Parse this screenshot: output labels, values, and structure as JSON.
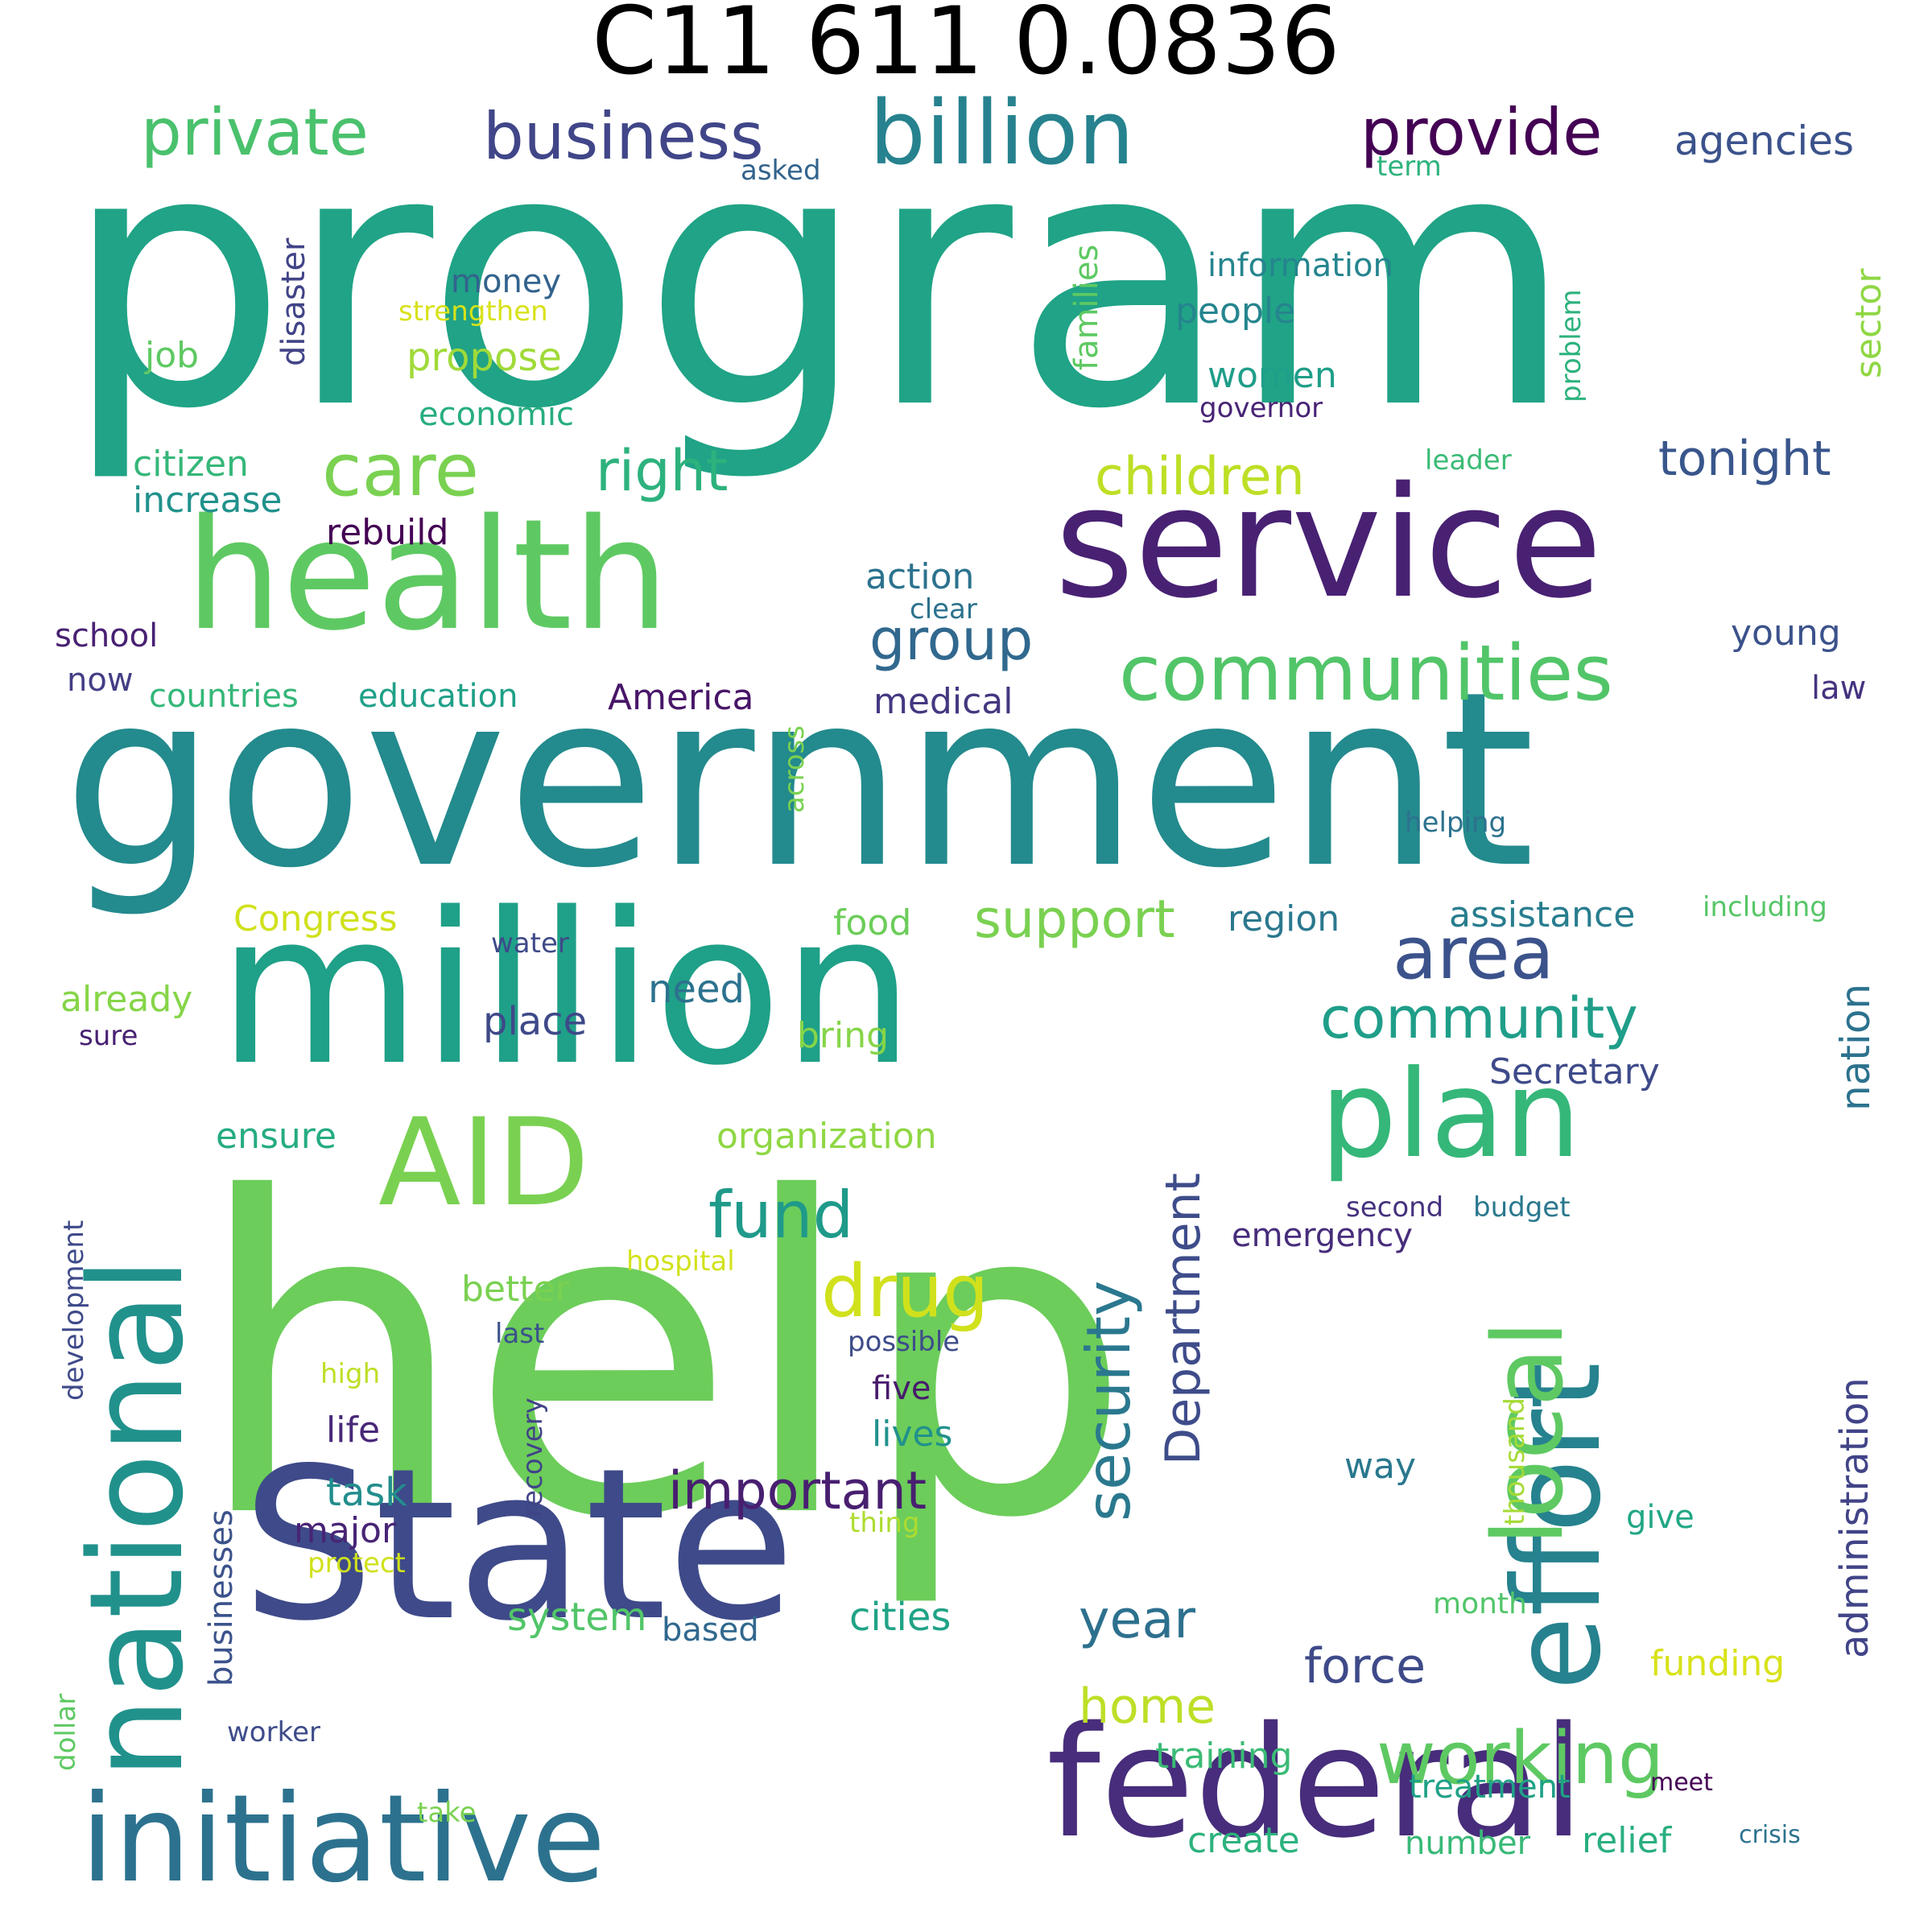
{
  "title": "C11 611 0.0836",
  "words": [
    {
      "id": "program",
      "text": "program",
      "color": "#20a386"
    },
    {
      "id": "help",
      "text": "help",
      "color": "#6ccd5a"
    },
    {
      "id": "government",
      "text": "government",
      "color": "#238a8d"
    },
    {
      "id": "million",
      "text": "million",
      "color": "#1fa088"
    },
    {
      "id": "state",
      "text": "State",
      "color": "#3e4a89"
    },
    {
      "id": "health",
      "text": "health",
      "color": "#5ec962"
    },
    {
      "id": "service",
      "text": "service",
      "color": "#482173"
    },
    {
      "id": "federal",
      "text": "federal",
      "color": "#472d7b"
    },
    {
      "id": "initiative",
      "text": "initiative",
      "color": "#2c728e"
    },
    {
      "id": "national",
      "text": "national",
      "color": "#21918c"
    },
    {
      "id": "effort",
      "text": "effort",
      "color": "#26828e"
    },
    {
      "id": "local",
      "text": "local",
      "color": "#5ec962"
    },
    {
      "id": "plan",
      "text": "plan",
      "color": "#35b779"
    },
    {
      "id": "aid",
      "text": "AID",
      "color": "#7ad151"
    },
    {
      "id": "billion",
      "text": "billion",
      "color": "#26828e"
    },
    {
      "id": "business",
      "text": "business",
      "color": "#404688"
    },
    {
      "id": "private",
      "text": "private",
      "color": "#4ac16d"
    },
    {
      "id": "provide",
      "text": "provide",
      "color": "#440154"
    },
    {
      "id": "agencies",
      "text": "agencies",
      "color": "#3b528b"
    },
    {
      "id": "asked",
      "text": "asked",
      "color": "#33638d"
    },
    {
      "id": "term",
      "text": "term",
      "color": "#2eb37c"
    },
    {
      "id": "care",
      "text": "care",
      "color": "#7ad151"
    },
    {
      "id": "right",
      "text": "right",
      "color": "#2db27d"
    },
    {
      "id": "children",
      "text": "children",
      "color": "#bddf26"
    },
    {
      "id": "tonight",
      "text": "tonight",
      "color": "#39568c"
    },
    {
      "id": "communities",
      "text": "communities",
      "color": "#52c569"
    },
    {
      "id": "group",
      "text": "group",
      "color": "#31688e"
    },
    {
      "id": "area",
      "text": "area",
      "color": "#3b528b"
    },
    {
      "id": "community",
      "text": "community",
      "color": "#1f9e89"
    },
    {
      "id": "support",
      "text": "support",
      "color": "#7ad151"
    },
    {
      "id": "fund",
      "text": "fund",
      "color": "#1f9a8a"
    },
    {
      "id": "drug",
      "text": "drug",
      "color": "#d0e11c"
    },
    {
      "id": "security",
      "text": "security",
      "color": "#2a788e"
    },
    {
      "id": "department",
      "text": "Department",
      "color": "#3e4c8a"
    },
    {
      "id": "year",
      "text": "year",
      "color": "#2d708e"
    },
    {
      "id": "force",
      "text": "force",
      "color": "#3e4a89"
    },
    {
      "id": "home",
      "text": "home",
      "color": "#bddf26"
    },
    {
      "id": "working",
      "text": "working",
      "color": "#5ec962"
    },
    {
      "id": "important",
      "text": "important",
      "color": "#481f70"
    },
    {
      "id": "administration",
      "text": "administration",
      "color": "#414487"
    },
    {
      "id": "nation",
      "text": "nation",
      "color": "#2c728e"
    },
    {
      "id": "money",
      "text": "money",
      "color": "#33638d"
    },
    {
      "id": "strengthen",
      "text": "strengthen",
      "color": "#d8e219"
    },
    {
      "id": "propose",
      "text": "propose",
      "color": "#a0da39"
    },
    {
      "id": "economic",
      "text": "economic",
      "color": "#27ad81"
    },
    {
      "id": "job",
      "text": "job",
      "color": "#5ec962"
    },
    {
      "id": "disaster",
      "text": "disaster",
      "color": "#414487"
    },
    {
      "id": "citizen",
      "text": "citizen",
      "color": "#35b779"
    },
    {
      "id": "increase",
      "text": "increase",
      "color": "#21918c"
    },
    {
      "id": "rebuild",
      "text": "rebuild",
      "color": "#440154"
    },
    {
      "id": "families",
      "text": "families",
      "color": "#5ec962"
    },
    {
      "id": "information",
      "text": "information",
      "color": "#25858e"
    },
    {
      "id": "people",
      "text": "people",
      "color": "#25858e"
    },
    {
      "id": "women",
      "text": "women",
      "color": "#1f9e89"
    },
    {
      "id": "governor",
      "text": "governor",
      "color": "#482475"
    },
    {
      "id": "problem",
      "text": "problem",
      "color": "#2db27d"
    },
    {
      "id": "sector",
      "text": "sector",
      "color": "#8fd744"
    },
    {
      "id": "leader",
      "text": "leader",
      "color": "#3bbb75"
    },
    {
      "id": "action",
      "text": "action",
      "color": "#2c728e"
    },
    {
      "id": "clear",
      "text": "clear",
      "color": "#2c728e"
    },
    {
      "id": "school",
      "text": "school",
      "color": "#482173"
    },
    {
      "id": "now",
      "text": "now",
      "color": "#433e85"
    },
    {
      "id": "countries",
      "text": "countries",
      "color": "#35b779"
    },
    {
      "id": "education",
      "text": "education",
      "color": "#1fa088"
    },
    {
      "id": "america",
      "text": "America",
      "color": "#481668"
    },
    {
      "id": "medical",
      "text": "medical",
      "color": "#453781"
    },
    {
      "id": "across",
      "text": "across",
      "color": "#7ad151"
    },
    {
      "id": "young",
      "text": "young",
      "color": "#3b528b"
    },
    {
      "id": "law",
      "text": "law",
      "color": "#46337f"
    },
    {
      "id": "helping",
      "text": "helping",
      "color": "#2c728e"
    },
    {
      "id": "congress",
      "text": "Congress",
      "color": "#d0e11c"
    },
    {
      "id": "food",
      "text": "food",
      "color": "#6ccd5a"
    },
    {
      "id": "region",
      "text": "region",
      "color": "#2a788e"
    },
    {
      "id": "assistance",
      "text": "assistance",
      "color": "#287d8e"
    },
    {
      "id": "including",
      "text": "including",
      "color": "#56c667"
    },
    {
      "id": "water",
      "text": "water",
      "color": "#3e4a89"
    },
    {
      "id": "already",
      "text": "already",
      "color": "#86d549"
    },
    {
      "id": "sure",
      "text": "sure",
      "color": "#482173"
    },
    {
      "id": "place",
      "text": "place",
      "color": "#3e4989"
    },
    {
      "id": "need",
      "text": "need",
      "color": "#2c728e"
    },
    {
      "id": "bring",
      "text": "bring",
      "color": "#86d549"
    },
    {
      "id": "secretary",
      "text": "Secretary",
      "color": "#3e4a89"
    },
    {
      "id": "ensure",
      "text": "ensure",
      "color": "#25ab82"
    },
    {
      "id": "organization",
      "text": "organization",
      "color": "#8fd744"
    },
    {
      "id": "second",
      "text": "second",
      "color": "#46327e"
    },
    {
      "id": "budget",
      "text": "budget",
      "color": "#2a788e"
    },
    {
      "id": "emergency",
      "text": "emergency",
      "color": "#472d7b"
    },
    {
      "id": "hospital",
      "text": "hospital",
      "color": "#d2e21b"
    },
    {
      "id": "better",
      "text": "better",
      "color": "#7ad151"
    },
    {
      "id": "development",
      "text": "development",
      "color": "#3e4a89"
    },
    {
      "id": "last",
      "text": "last",
      "color": "#3b528b"
    },
    {
      "id": "possible",
      "text": "possible",
      "color": "#3e4c8a"
    },
    {
      "id": "high",
      "text": "high",
      "color": "#bddf26"
    },
    {
      "id": "five",
      "text": "five",
      "color": "#481a6c"
    },
    {
      "id": "lives",
      "text": "lives",
      "color": "#21918c"
    },
    {
      "id": "life",
      "text": "life",
      "color": "#482878"
    },
    {
      "id": "recovery",
      "text": "recovery",
      "color": "#414487"
    },
    {
      "id": "thousand",
      "text": "thousand",
      "color": "#a5db36"
    },
    {
      "id": "way",
      "text": "way",
      "color": "#2a788e"
    },
    {
      "id": "task",
      "text": "task",
      "color": "#228d8d"
    },
    {
      "id": "major",
      "text": "major",
      "color": "#482475"
    },
    {
      "id": "businesses",
      "text": "businesses",
      "color": "#3b528b"
    },
    {
      "id": "thing",
      "text": "thing",
      "color": "#addc30"
    },
    {
      "id": "give",
      "text": "give",
      "color": "#22a785"
    },
    {
      "id": "protect",
      "text": "protect",
      "color": "#d0e11c"
    },
    {
      "id": "system",
      "text": "system",
      "color": "#52c569"
    },
    {
      "id": "based",
      "text": "based",
      "color": "#31688e"
    },
    {
      "id": "cities",
      "text": "cities",
      "color": "#20a386"
    },
    {
      "id": "month",
      "text": "month",
      "color": "#52c569"
    },
    {
      "id": "funding",
      "text": "funding",
      "color": "#d8e219"
    },
    {
      "id": "dollar",
      "text": "dollar",
      "color": "#5ec962"
    },
    {
      "id": "worker",
      "text": "worker",
      "color": "#3e4c8a"
    },
    {
      "id": "training",
      "text": "training",
      "color": "#3bbb75"
    },
    {
      "id": "treatment",
      "text": "treatment",
      "color": "#1fa187"
    },
    {
      "id": "meet",
      "text": "meet",
      "color": "#440154"
    },
    {
      "id": "take",
      "text": "take",
      "color": "#7ad151"
    },
    {
      "id": "create",
      "text": "create",
      "color": "#2db27d"
    },
    {
      "id": "number",
      "text": "number",
      "color": "#38b977"
    },
    {
      "id": "relief",
      "text": "relief",
      "color": "#29af7f"
    },
    {
      "id": "crisis",
      "text": "crisis",
      "color": "#2c728e"
    }
  ]
}
